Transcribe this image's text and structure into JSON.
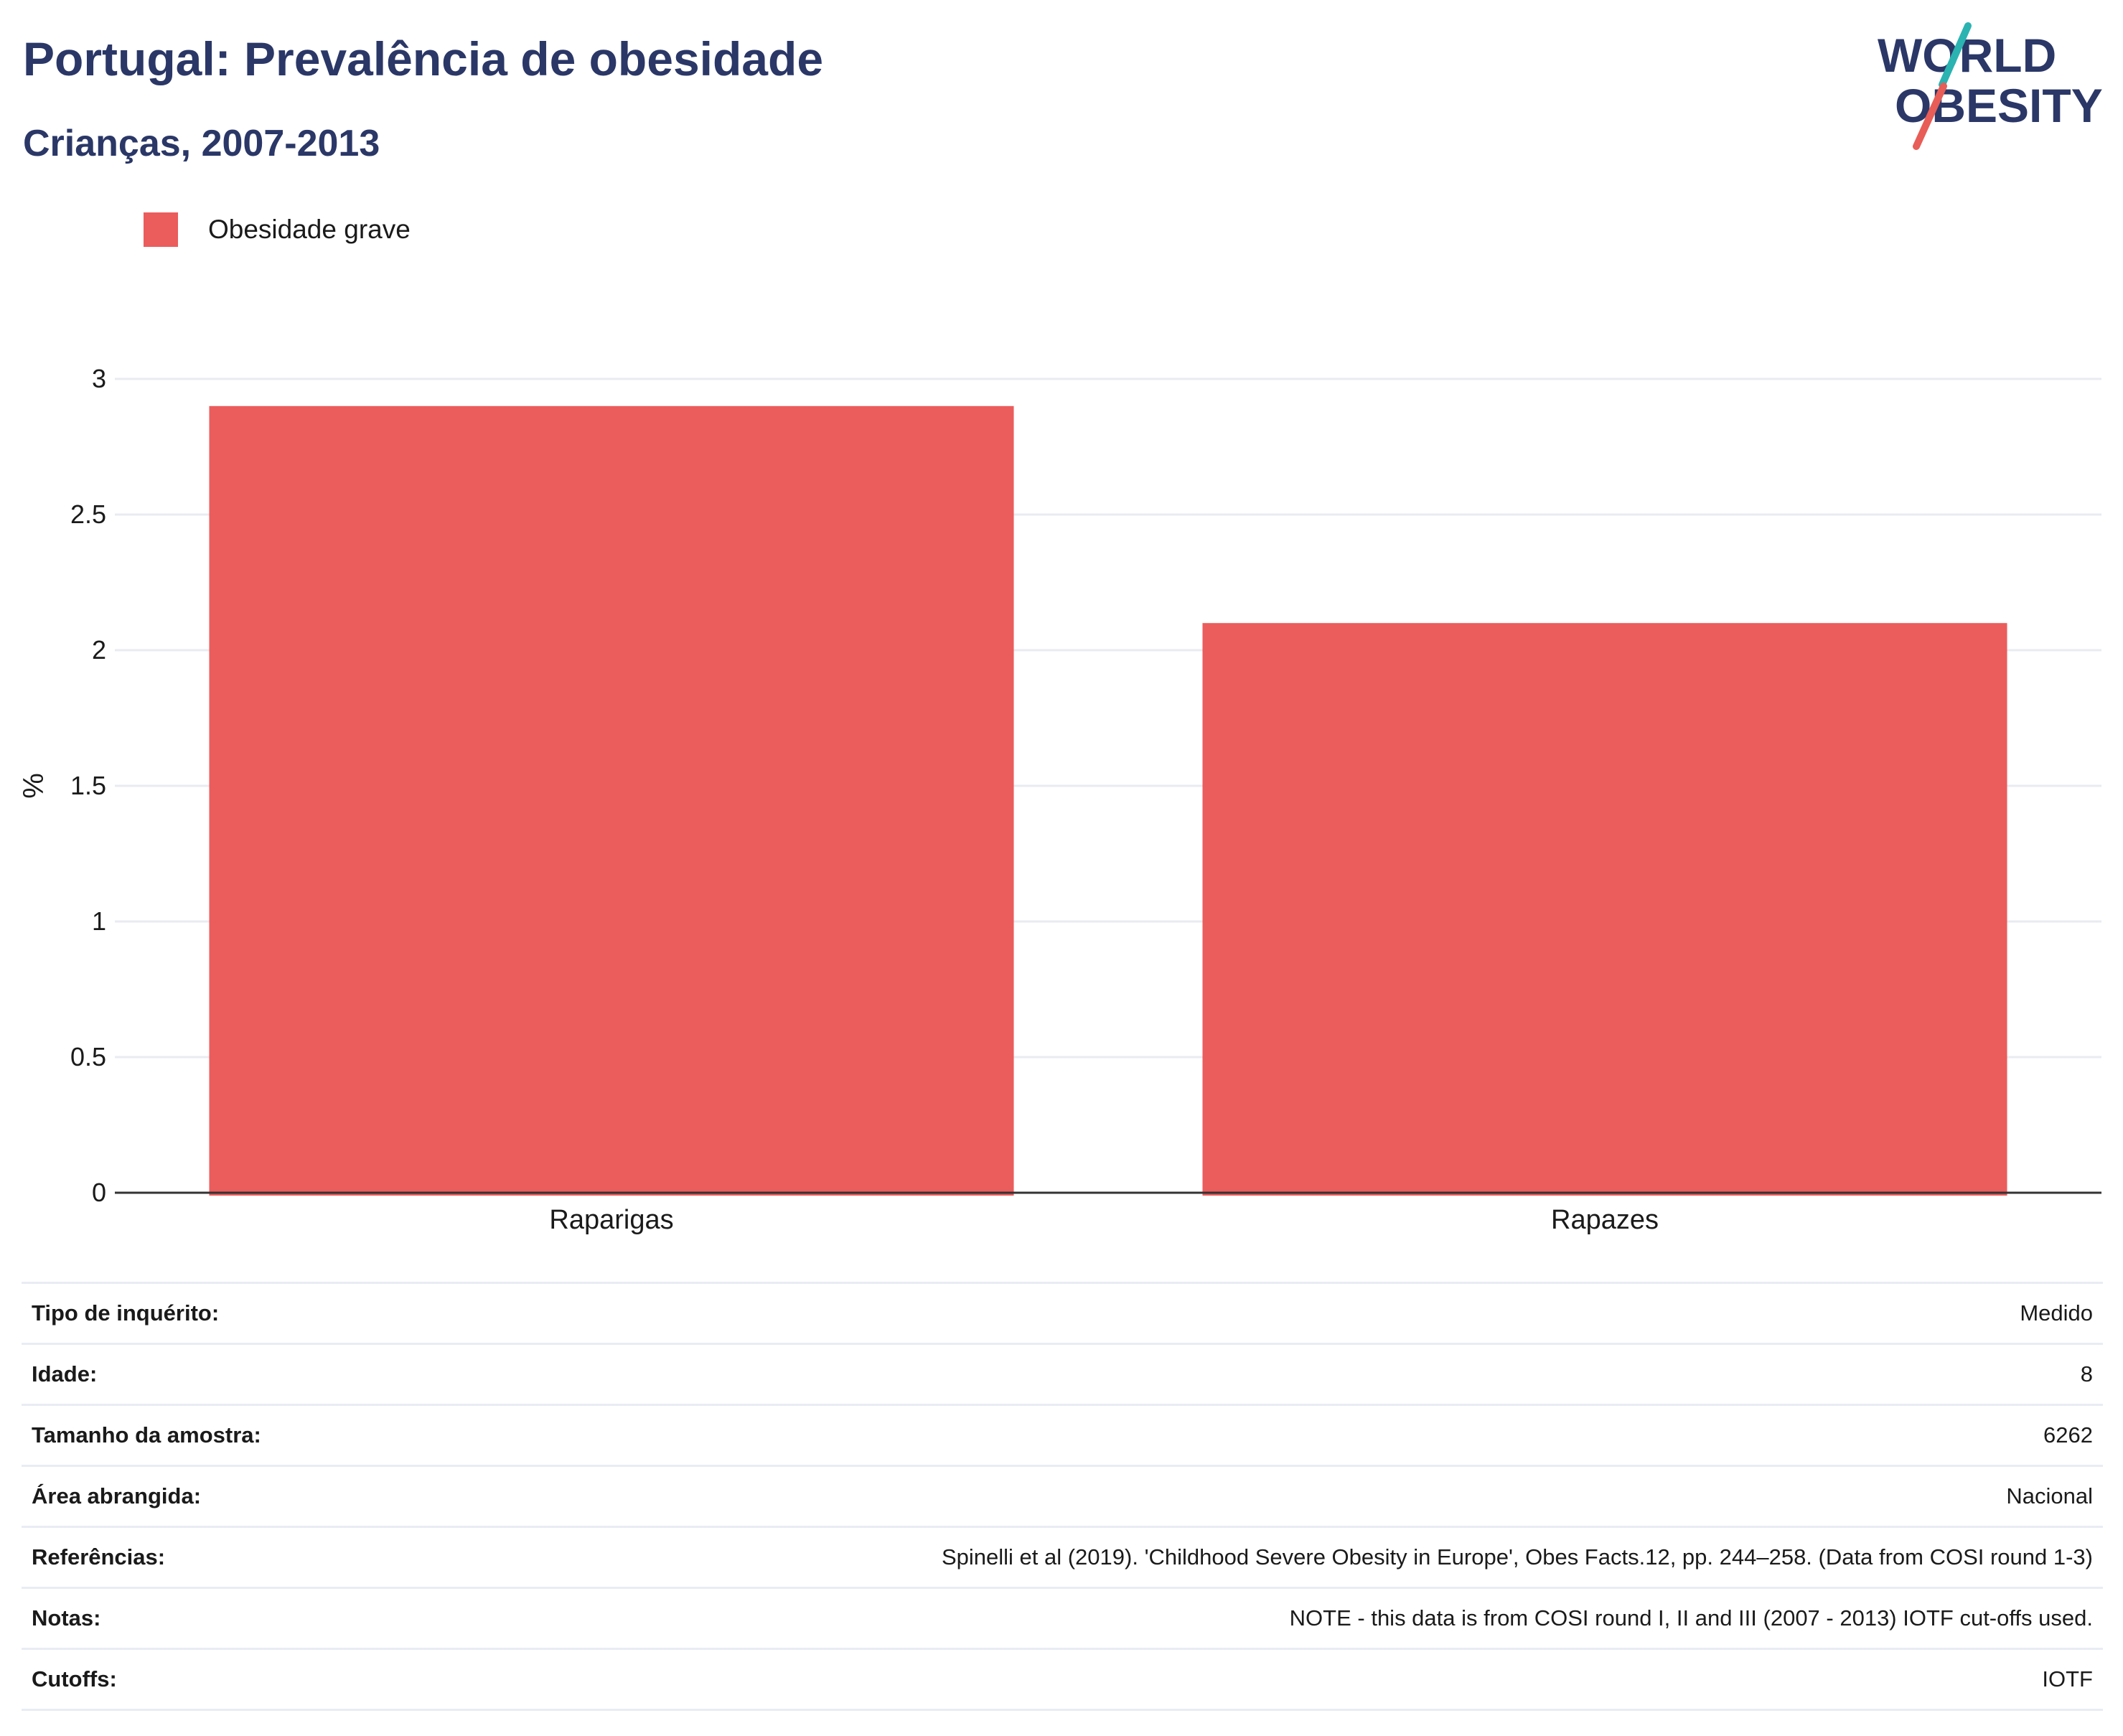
{
  "header": {
    "title": "Portugal: Prevalência de obesidade",
    "subtitle": "Crianças, 2007-2013"
  },
  "logo": {
    "line1": "WORLD",
    "line2": "OBESITY",
    "color_text": "#2a3767",
    "color_teal": "#2ab3b1",
    "color_coral": "#e85d57"
  },
  "legend": {
    "items": [
      {
        "label": "Obesidade grave",
        "color": "#eb5c5c"
      }
    ]
  },
  "chart_data": {
    "type": "bar",
    "categories": [
      "Raparigas",
      "Rapazes"
    ],
    "series": [
      {
        "name": "Obesidade grave",
        "values": [
          2.9,
          2.1
        ],
        "color": "#eb5c5c"
      }
    ],
    "ylabel": "%",
    "xlabel": "",
    "ylim": [
      0,
      3
    ],
    "yticks": [
      0,
      0.5,
      1,
      1.5,
      2,
      2.5,
      3
    ],
    "ytick_labels": [
      "0",
      "0.5",
      "1",
      "1.5",
      "2",
      "2.5",
      "3"
    ],
    "grid": true,
    "legend_position": "top-left"
  },
  "meta": {
    "rows": [
      {
        "key": "Tipo de inquérito:",
        "value": "Medido"
      },
      {
        "key": "Idade:",
        "value": "8"
      },
      {
        "key": "Tamanho da amostra:",
        "value": "6262"
      },
      {
        "key": "Área abrangida:",
        "value": "Nacional"
      },
      {
        "key": "Referências:",
        "value": "Spinelli et al (2019). 'Childhood Severe Obesity in Europe', Obes Facts.12, pp. 244–258. (Data from COSI round 1-3)"
      },
      {
        "key": "Notas:",
        "value": "NOTE - this data is from COSI round I, II and III (2007 - 2013) IOTF cut-offs used."
      },
      {
        "key": "Cutoffs:",
        "value": "IOTF"
      }
    ]
  }
}
